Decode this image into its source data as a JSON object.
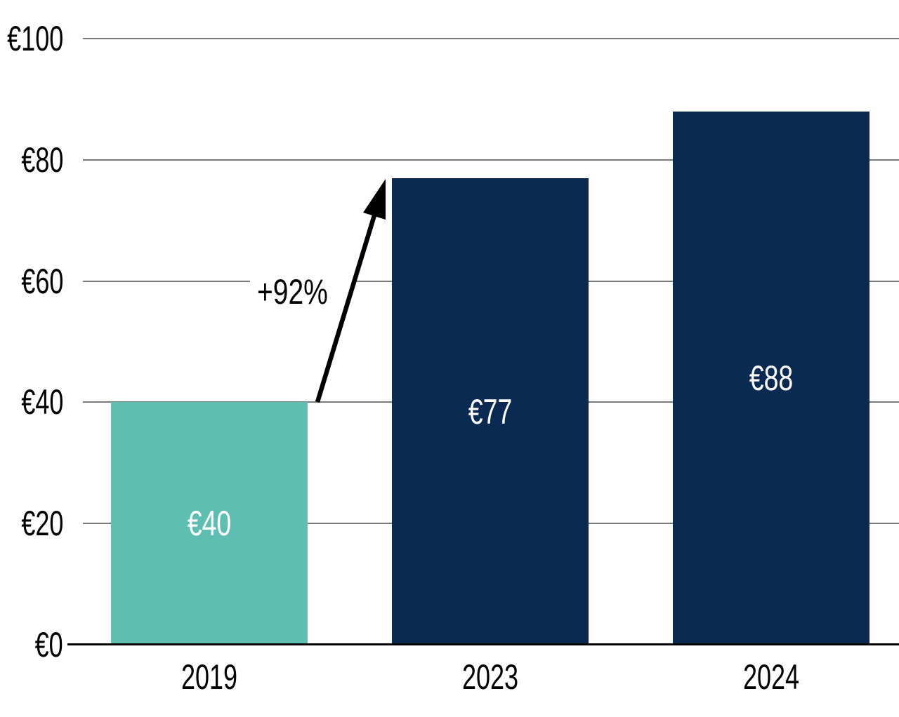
{
  "chart_data": {
    "type": "bar",
    "categories": [
      "2019",
      "2023",
      "2024"
    ],
    "values": [
      40,
      77,
      88
    ],
    "bar_labels": [
      "€40",
      "€77",
      "€88"
    ],
    "bar_colors": [
      "#5FBEB2",
      "#0B2A52",
      "#0B2A52"
    ],
    "title": "",
    "xlabel": "",
    "ylabel": "",
    "ylim": [
      0,
      100
    ],
    "yticks": [
      0,
      20,
      40,
      60,
      80,
      100
    ],
    "ytick_labels": [
      "€0",
      "€20",
      "€40",
      "€60",
      "€80",
      "€100"
    ],
    "grid": true,
    "legend": false,
    "annotation": {
      "text": "+92%",
      "from_category": "2019",
      "from_value": 40,
      "to_category": "2023",
      "to_value": 77
    }
  },
  "colors": {
    "background": "#FFFFFF",
    "gridline": "#7A7A7A",
    "axis_line": "#000000",
    "tick_text": "#000000",
    "bar_value_text": "#FFFFFF",
    "arrow": "#000000",
    "teal": "#5FBEB2",
    "navy": "#0B2A52"
  }
}
